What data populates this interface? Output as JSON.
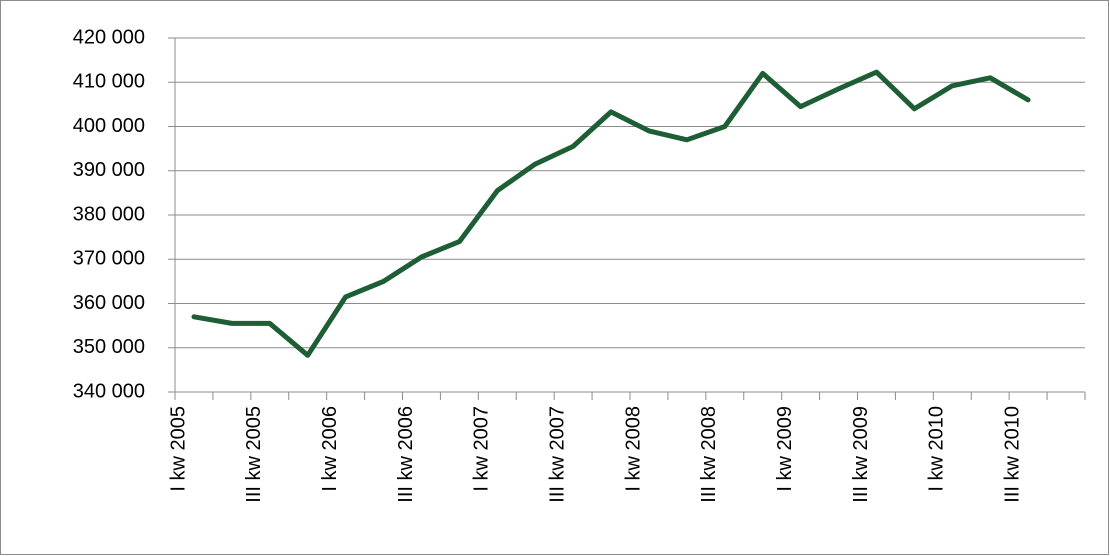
{
  "chart_data": {
    "type": "line",
    "categories": [
      "I kw 2005",
      null,
      "III kw 2005",
      null,
      "I kw 2006",
      null,
      "III kw 2006",
      null,
      "I kw 2007",
      null,
      "III kw 2007",
      null,
      "I kw 2008",
      null,
      "III kw 2008",
      null,
      "I kw 2009",
      null,
      "III kw 2009",
      null,
      "I kw 2010",
      null,
      "III kw 2010",
      null
    ],
    "values": [
      357000,
      355500,
      355500,
      348300,
      361500,
      365000,
      370500,
      374000,
      385500,
      391500,
      395500,
      403300,
      399000,
      397000,
      400000,
      412000,
      404500,
      408500,
      412300,
      404000,
      409200,
      411000,
      406000,
      null
    ],
    "color": "#1d5e34",
    "ylim": [
      340000,
      420000
    ],
    "yticks": [
      {
        "value": 340000,
        "label": "340 000"
      },
      {
        "value": 350000,
        "label": "350 000"
      },
      {
        "value": 360000,
        "label": "360 000"
      },
      {
        "value": 370000,
        "label": "370 000"
      },
      {
        "value": 380000,
        "label": "380 000"
      },
      {
        "value": 390000,
        "label": "390 000"
      },
      {
        "value": 400000,
        "label": "400 000"
      },
      {
        "value": 410000,
        "label": "410 000"
      },
      {
        "value": 420000,
        "label": "420 000"
      }
    ],
    "grid": true
  }
}
